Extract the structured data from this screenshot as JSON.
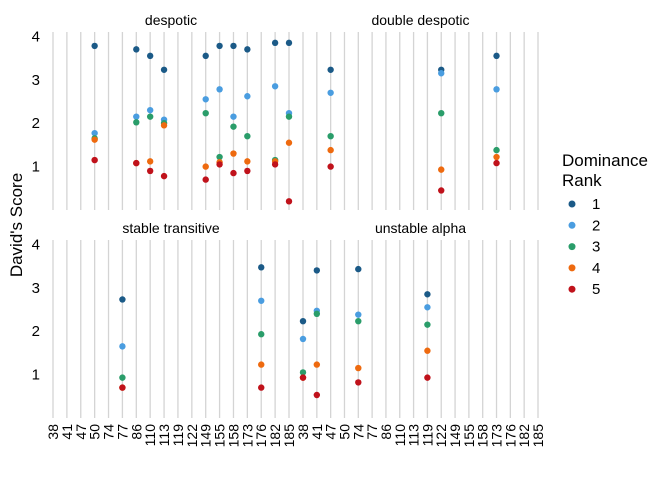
{
  "chart_data": {
    "type": "scatter",
    "ylabel": "David's Score",
    "yticks": [
      1,
      2,
      3,
      4
    ],
    "ylim": [
      0,
      4.1
    ],
    "xcategories": [
      "38",
      "41",
      "47",
      "50",
      "74",
      "77",
      "86",
      "110",
      "113",
      "119",
      "122",
      "149",
      "155",
      "158",
      "173",
      "176",
      "182",
      "185"
    ],
    "grid": "vertical gridlines at each category",
    "legend": {
      "title": "Dominance Rank",
      "placement": "right",
      "entries": [
        {
          "label": "1",
          "color": "#1b5a87"
        },
        {
          "label": "2",
          "color": "#4a9de0"
        },
        {
          "label": "3",
          "color": "#2a9d6a"
        },
        {
          "label": "4",
          "color": "#ee6a0f"
        },
        {
          "label": "5",
          "color": "#c0121b"
        }
      ]
    },
    "panels": [
      {
        "title": "despotic",
        "groups": [
          {
            "x": "50",
            "values": [
              3.78,
              1.77,
              1.65,
              1.62,
              1.15
            ]
          },
          {
            "x": "86",
            "values": [
              3.7,
              2.15,
              2.02,
              1.08,
              1.08
            ]
          },
          {
            "x": "110",
            "values": [
              3.55,
              2.3,
              2.15,
              1.12,
              0.9
            ]
          },
          {
            "x": "113",
            "values": [
              3.23,
              2.08,
              2.0,
              1.95,
              0.78
            ]
          },
          {
            "x": "149",
            "values": [
              3.55,
              2.55,
              2.23,
              1.0,
              0.7
            ]
          },
          {
            "x": "155",
            "values": [
              3.78,
              2.78,
              1.22,
              1.1,
              1.05
            ]
          },
          {
            "x": "158",
            "values": [
              3.78,
              2.15,
              1.92,
              1.3,
              0.85
            ]
          },
          {
            "x": "173",
            "values": [
              3.7,
              2.62,
              1.7,
              1.12,
              0.9
            ]
          },
          {
            "x": "182",
            "values": [
              3.85,
              2.85,
              1.15,
              1.12,
              1.05
            ]
          },
          {
            "x": "185",
            "values": [
              3.85,
              2.23,
              2.15,
              1.55,
              0.2
            ]
          }
        ]
      },
      {
        "title": "double despotic",
        "groups": [
          {
            "x": "47",
            "values": [
              3.23,
              2.7,
              1.7,
              1.38,
              1.0
            ]
          },
          {
            "x": "122",
            "values": [
              3.23,
              3.15,
              2.23,
              0.93,
              0.45
            ]
          },
          {
            "x": "173",
            "values": [
              3.55,
              2.78,
              1.38,
              1.22,
              1.08
            ]
          }
        ]
      },
      {
        "title": "stable transitive",
        "groups": [
          {
            "x": "77",
            "values": [
              2.73,
              1.65,
              0.93,
              0.7,
              0.7
            ]
          },
          {
            "x": "176",
            "values": [
              3.47,
              2.7,
              1.93,
              1.23,
              0.7
            ]
          }
        ]
      },
      {
        "title": "unstable alpha",
        "groups": [
          {
            "x": "38",
            "values": [
              2.23,
              1.82,
              1.05,
              0.93,
              0.93
            ]
          },
          {
            "x": "41",
            "values": [
              3.4,
              2.47,
              2.4,
              1.23,
              0.53
            ]
          },
          {
            "x": "74",
            "values": [
              3.43,
              2.38,
              2.23,
              1.15,
              0.82
            ]
          },
          {
            "x": "119",
            "values": [
              2.85,
              2.55,
              2.15,
              1.55,
              0.93
            ]
          }
        ]
      }
    ]
  }
}
